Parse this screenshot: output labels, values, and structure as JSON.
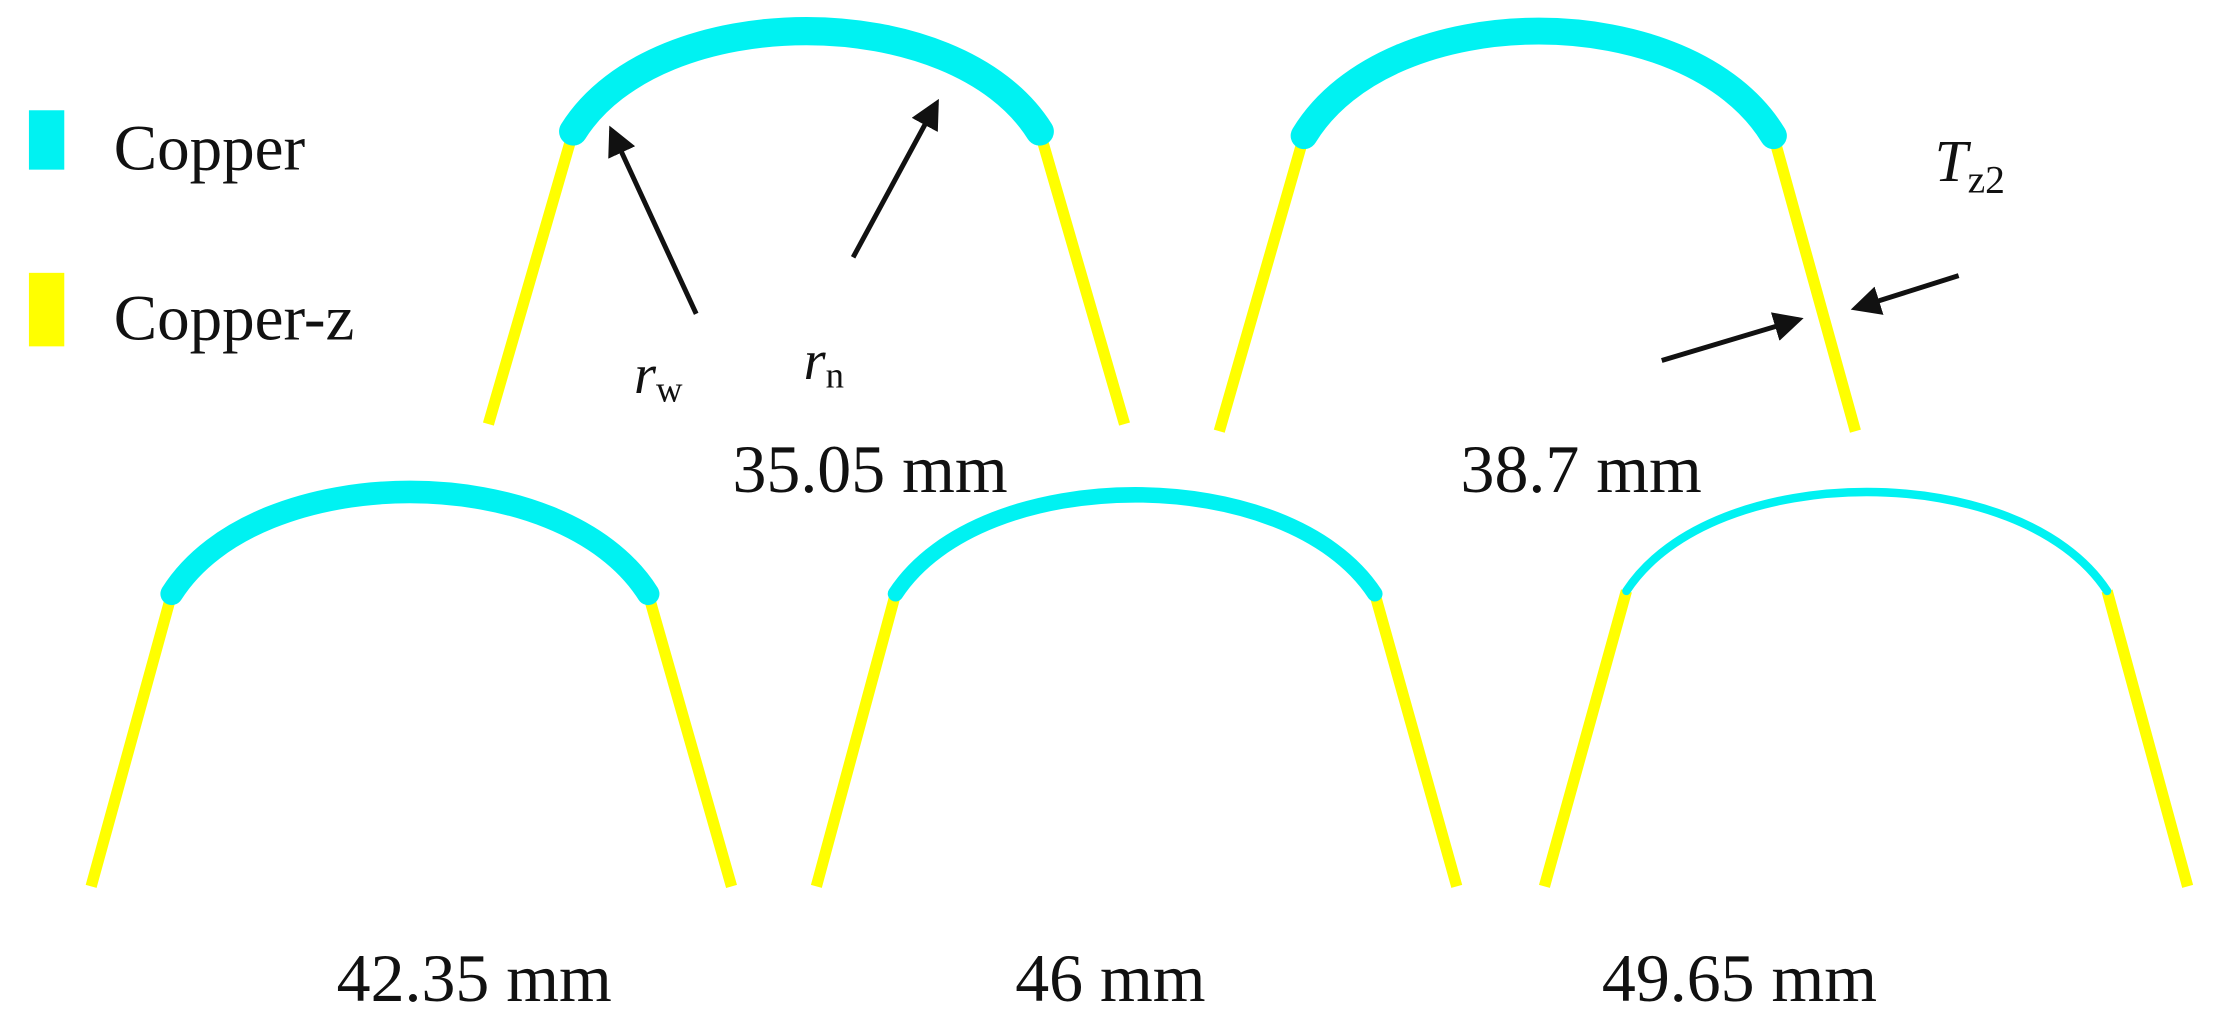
{
  "colors": {
    "copper": "#00f2f2",
    "copper_z": "#ffff00",
    "text": "#111111"
  },
  "legend": [
    {
      "label": "Copper",
      "color": "#00f2f2"
    },
    {
      "label": "Copper-z",
      "color": "#ffff00"
    }
  ],
  "annotations": {
    "rw_base": "r",
    "rw_sub": "w",
    "rn_base": "r",
    "rn_sub": "n",
    "tz2_base": "T",
    "tz2_sub": "z2"
  },
  "panels": [
    {
      "label": "35.05 mm"
    },
    {
      "label": "38.7 mm"
    },
    {
      "label": "42.35 mm"
    },
    {
      "label": "46 mm"
    },
    {
      "label": "49.65 mm"
    }
  ]
}
